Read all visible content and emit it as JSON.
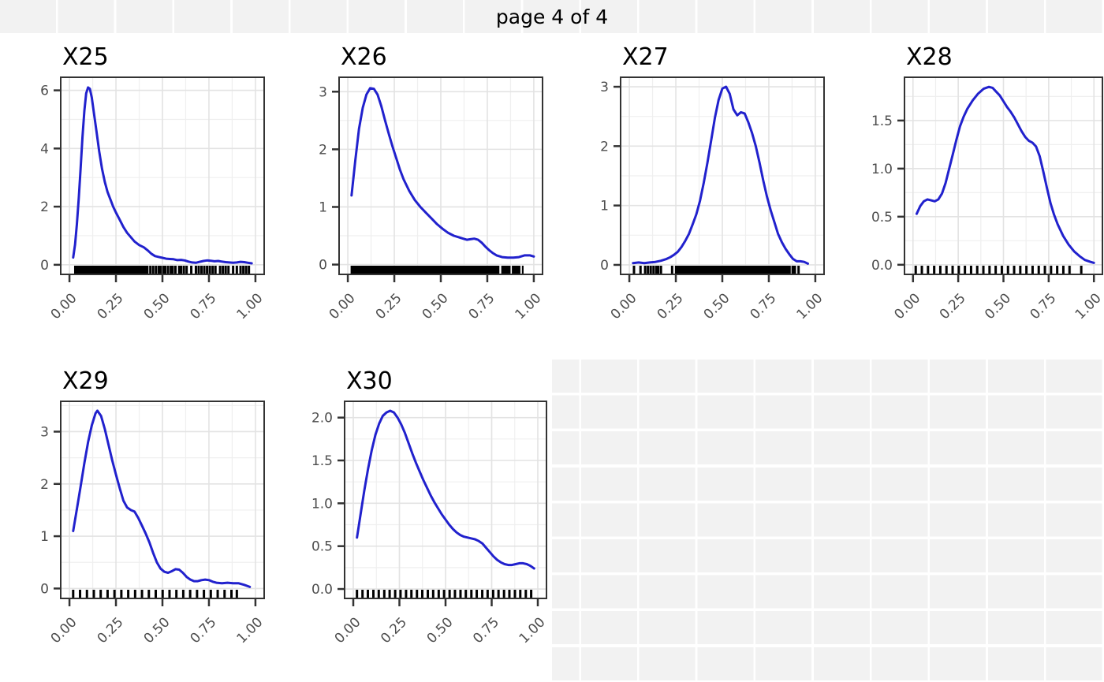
{
  "page": {
    "title": "page 4 of 4"
  },
  "colors": {
    "line": "#2121cd",
    "panel_background": "#ffffff",
    "grid_major": "#e3e3e3",
    "grid_minor": "#efefef",
    "panel_border": "#333333",
    "axis_tick": "#333333",
    "tick_label": "#4d4d4d",
    "title": "#000000",
    "rug": "#000000",
    "checker_cell": "#f2f2f2",
    "checker_line": "#ffffff"
  },
  "chart_data": [
    {
      "id": "X25",
      "title": "X25",
      "type": "line",
      "xlabel": "",
      "ylabel": "",
      "grid": true,
      "legend": "none",
      "xlim": [
        -0.047,
        1.047
      ],
      "ylim": [
        -0.33,
        6.45
      ],
      "x_ticks": [
        {
          "v": 0,
          "label": "0.00"
        },
        {
          "v": 0.25,
          "label": "0.25"
        },
        {
          "v": 0.5,
          "label": "0.50"
        },
        {
          "v": 0.75,
          "label": "0.75"
        },
        {
          "v": 1,
          "label": "1.00"
        }
      ],
      "y_ticks": [
        {
          "v": 0,
          "label": "0"
        },
        {
          "v": 2,
          "label": "2"
        },
        {
          "v": 4,
          "label": "4"
        },
        {
          "v": 6,
          "label": "6"
        }
      ],
      "curve": {
        "x": [
          0.02,
          0.03,
          0.04,
          0.05,
          0.06,
          0.07,
          0.08,
          0.09,
          0.1,
          0.11,
          0.12,
          0.13,
          0.145,
          0.16,
          0.175,
          0.19,
          0.205,
          0.22,
          0.235,
          0.25,
          0.27,
          0.29,
          0.31,
          0.33,
          0.35,
          0.375,
          0.4,
          0.42,
          0.44,
          0.46,
          0.48,
          0.5,
          0.52,
          0.54,
          0.56,
          0.58,
          0.6,
          0.62,
          0.64,
          0.66,
          0.68,
          0.7,
          0.72,
          0.74,
          0.76,
          0.78,
          0.8,
          0.82,
          0.84,
          0.86,
          0.88,
          0.9,
          0.92,
          0.94,
          0.96,
          0.98
        ],
        "y": [
          0.25,
          0.7,
          1.4,
          2.3,
          3.3,
          4.4,
          5.3,
          5.9,
          6.1,
          6.05,
          5.75,
          5.3,
          4.6,
          3.9,
          3.3,
          2.85,
          2.5,
          2.25,
          2.0,
          1.8,
          1.55,
          1.3,
          1.1,
          0.95,
          0.8,
          0.68,
          0.6,
          0.5,
          0.38,
          0.3,
          0.27,
          0.24,
          0.21,
          0.2,
          0.19,
          0.16,
          0.17,
          0.15,
          0.11,
          0.08,
          0.07,
          0.1,
          0.13,
          0.15,
          0.14,
          0.12,
          0.13,
          0.11,
          0.09,
          0.08,
          0.07,
          0.08,
          0.1,
          0.09,
          0.07,
          0.05
        ]
      },
      "rug": {
        "bands": [
          [
            0.025,
            0.425
          ]
        ],
        "ticks": [
          0.435,
          0.45,
          0.465,
          0.48,
          0.49,
          0.505,
          0.515,
          0.53,
          0.545,
          0.555,
          0.57,
          0.59,
          0.6,
          0.615,
          0.63,
          0.655,
          0.68,
          0.695,
          0.71,
          0.725,
          0.74,
          0.755,
          0.77,
          0.785,
          0.81,
          0.825,
          0.84,
          0.855,
          0.88,
          0.9,
          0.92,
          0.935,
          0.95,
          0.965
        ]
      }
    },
    {
      "id": "X26",
      "title": "X26",
      "type": "line",
      "xlabel": "",
      "ylabel": "",
      "grid": true,
      "legend": "none",
      "xlim": [
        -0.047,
        1.047
      ],
      "ylim": [
        -0.17,
        3.25
      ],
      "x_ticks": [
        {
          "v": 0,
          "label": "0.00"
        },
        {
          "v": 0.25,
          "label": "0.25"
        },
        {
          "v": 0.5,
          "label": "0.50"
        },
        {
          "v": 0.75,
          "label": "0.75"
        },
        {
          "v": 1,
          "label": "1.00"
        }
      ],
      "y_ticks": [
        {
          "v": 0,
          "label": "0"
        },
        {
          "v": 1,
          "label": "1"
        },
        {
          "v": 2,
          "label": "2"
        },
        {
          "v": 3,
          "label": "3"
        }
      ],
      "curve": {
        "x": [
          0.02,
          0.04,
          0.06,
          0.08,
          0.1,
          0.12,
          0.14,
          0.16,
          0.18,
          0.2,
          0.22,
          0.24,
          0.26,
          0.28,
          0.3,
          0.33,
          0.36,
          0.39,
          0.42,
          0.45,
          0.48,
          0.51,
          0.54,
          0.57,
          0.6,
          0.62,
          0.64,
          0.66,
          0.68,
          0.7,
          0.72,
          0.74,
          0.76,
          0.78,
          0.8,
          0.83,
          0.86,
          0.89,
          0.92,
          0.95,
          0.98,
          1.0
        ],
        "y": [
          1.2,
          1.8,
          2.35,
          2.72,
          2.95,
          3.06,
          3.05,
          2.95,
          2.75,
          2.5,
          2.27,
          2.05,
          1.85,
          1.65,
          1.48,
          1.28,
          1.12,
          1.0,
          0.9,
          0.8,
          0.7,
          0.62,
          0.55,
          0.5,
          0.47,
          0.45,
          0.43,
          0.44,
          0.45,
          0.43,
          0.38,
          0.31,
          0.25,
          0.2,
          0.16,
          0.13,
          0.12,
          0.12,
          0.13,
          0.16,
          0.16,
          0.14
        ]
      },
      "rug": {
        "bands": [
          [
            0.015,
            0.815
          ],
          [
            0.825,
            0.875
          ],
          [
            0.882,
            0.928
          ],
          [
            0.936,
            0.945
          ]
        ],
        "ticks": []
      }
    },
    {
      "id": "X27",
      "title": "X27",
      "type": "line",
      "xlabel": "",
      "ylabel": "",
      "grid": true,
      "legend": "none",
      "xlim": [
        -0.047,
        1.047
      ],
      "ylim": [
        -0.16,
        3.16
      ],
      "x_ticks": [
        {
          "v": 0,
          "label": "0.00"
        },
        {
          "v": 0.25,
          "label": "0.25"
        },
        {
          "v": 0.5,
          "label": "0.50"
        },
        {
          "v": 0.75,
          "label": "0.75"
        },
        {
          "v": 1,
          "label": "1.00"
        }
      ],
      "y_ticks": [
        {
          "v": 0,
          "label": "0"
        },
        {
          "v": 1,
          "label": "1"
        },
        {
          "v": 2,
          "label": "2"
        },
        {
          "v": 3,
          "label": "3"
        }
      ],
      "curve": {
        "x": [
          0.02,
          0.05,
          0.08,
          0.11,
          0.14,
          0.17,
          0.2,
          0.22,
          0.24,
          0.26,
          0.28,
          0.3,
          0.32,
          0.34,
          0.36,
          0.38,
          0.4,
          0.42,
          0.44,
          0.46,
          0.48,
          0.5,
          0.52,
          0.54,
          0.56,
          0.58,
          0.6,
          0.62,
          0.64,
          0.66,
          0.68,
          0.7,
          0.72,
          0.74,
          0.76,
          0.78,
          0.8,
          0.82,
          0.84,
          0.86,
          0.88,
          0.9,
          0.92,
          0.94,
          0.96
        ],
        "y": [
          0.03,
          0.04,
          0.03,
          0.04,
          0.05,
          0.07,
          0.1,
          0.13,
          0.17,
          0.22,
          0.3,
          0.4,
          0.52,
          0.68,
          0.85,
          1.08,
          1.38,
          1.72,
          2.1,
          2.48,
          2.78,
          2.97,
          3.0,
          2.88,
          2.62,
          2.52,
          2.57,
          2.55,
          2.4,
          2.22,
          2.0,
          1.72,
          1.42,
          1.15,
          0.92,
          0.72,
          0.52,
          0.38,
          0.27,
          0.18,
          0.1,
          0.06,
          0.06,
          0.05,
          0.02
        ]
      },
      "rug": {
        "bands": [
          [
            0.245,
            0.868
          ]
        ],
        "ticks": [
          0.025,
          0.06,
          0.085,
          0.1,
          0.115,
          0.13,
          0.145,
          0.155,
          0.17,
          0.23,
          0.878,
          0.89,
          0.91
        ]
      }
    },
    {
      "id": "X28",
      "title": "X28",
      "type": "line",
      "xlabel": "",
      "ylabel": "",
      "grid": true,
      "legend": "none",
      "xlim": [
        -0.047,
        1.047
      ],
      "ylim": [
        -0.1,
        1.95
      ],
      "x_ticks": [
        {
          "v": 0,
          "label": "0.00"
        },
        {
          "v": 0.25,
          "label": "0.25"
        },
        {
          "v": 0.5,
          "label": "0.50"
        },
        {
          "v": 0.75,
          "label": "0.75"
        },
        {
          "v": 1,
          "label": "1.00"
        }
      ],
      "y_ticks": [
        {
          "v": 0,
          "label": "0.0"
        },
        {
          "v": 0.5,
          "label": "0.5"
        },
        {
          "v": 1,
          "label": "1.0"
        },
        {
          "v": 1.5,
          "label": "1.5"
        }
      ],
      "curve": {
        "x": [
          0.02,
          0.04,
          0.06,
          0.08,
          0.1,
          0.12,
          0.14,
          0.16,
          0.18,
          0.2,
          0.22,
          0.24,
          0.26,
          0.28,
          0.3,
          0.33,
          0.36,
          0.39,
          0.42,
          0.44,
          0.46,
          0.48,
          0.5,
          0.52,
          0.54,
          0.56,
          0.58,
          0.6,
          0.62,
          0.64,
          0.66,
          0.68,
          0.7,
          0.72,
          0.74,
          0.76,
          0.78,
          0.8,
          0.83,
          0.86,
          0.89,
          0.92,
          0.95,
          0.98,
          1.0
        ],
        "y": [
          0.53,
          0.61,
          0.66,
          0.68,
          0.67,
          0.66,
          0.68,
          0.74,
          0.85,
          1.0,
          1.15,
          1.3,
          1.44,
          1.54,
          1.62,
          1.71,
          1.78,
          1.83,
          1.85,
          1.84,
          1.8,
          1.76,
          1.7,
          1.64,
          1.59,
          1.53,
          1.46,
          1.39,
          1.33,
          1.29,
          1.27,
          1.23,
          1.13,
          0.97,
          0.8,
          0.64,
          0.52,
          0.42,
          0.3,
          0.21,
          0.14,
          0.09,
          0.05,
          0.03,
          0.02
        ]
      },
      "rug": {
        "bands": [],
        "ticks": [
          0.015,
          0.049,
          0.083,
          0.117,
          0.151,
          0.185,
          0.219,
          0.253,
          0.287,
          0.321,
          0.355,
          0.389,
          0.423,
          0.457,
          0.491,
          0.525,
          0.559,
          0.593,
          0.627,
          0.661,
          0.695,
          0.729,
          0.763,
          0.797,
          0.831,
          0.865,
          0.93
        ]
      }
    },
    {
      "id": "X29",
      "title": "X29",
      "type": "line",
      "xlabel": "",
      "ylabel": "",
      "grid": true,
      "legend": "none",
      "xlim": [
        -0.047,
        1.047
      ],
      "ylim": [
        -0.19,
        3.58
      ],
      "x_ticks": [
        {
          "v": 0,
          "label": "0.00"
        },
        {
          "v": 0.25,
          "label": "0.25"
        },
        {
          "v": 0.5,
          "label": "0.50"
        },
        {
          "v": 0.75,
          "label": "0.75"
        },
        {
          "v": 1,
          "label": "1.00"
        }
      ],
      "y_ticks": [
        {
          "v": 0,
          "label": "0"
        },
        {
          "v": 1,
          "label": "1"
        },
        {
          "v": 2,
          "label": "2"
        },
        {
          "v": 3,
          "label": "3"
        }
      ],
      "curve": {
        "x": [
          0.02,
          0.04,
          0.06,
          0.08,
          0.1,
          0.12,
          0.14,
          0.15,
          0.17,
          0.19,
          0.21,
          0.23,
          0.25,
          0.27,
          0.29,
          0.31,
          0.33,
          0.35,
          0.37,
          0.39,
          0.41,
          0.43,
          0.45,
          0.47,
          0.49,
          0.51,
          0.53,
          0.55,
          0.57,
          0.59,
          0.61,
          0.63,
          0.65,
          0.67,
          0.69,
          0.71,
          0.73,
          0.75,
          0.77,
          0.79,
          0.82,
          0.85,
          0.88,
          0.91,
          0.94,
          0.97
        ],
        "y": [
          1.1,
          1.52,
          1.95,
          2.4,
          2.8,
          3.12,
          3.35,
          3.4,
          3.3,
          3.05,
          2.75,
          2.45,
          2.18,
          1.92,
          1.68,
          1.55,
          1.5,
          1.47,
          1.35,
          1.2,
          1.05,
          0.88,
          0.68,
          0.5,
          0.38,
          0.32,
          0.3,
          0.33,
          0.37,
          0.36,
          0.3,
          0.22,
          0.17,
          0.14,
          0.14,
          0.16,
          0.17,
          0.16,
          0.13,
          0.11,
          0.1,
          0.11,
          0.1,
          0.1,
          0.07,
          0.03
        ]
      },
      "rug": {
        "bands": [],
        "ticks": [
          0.02,
          0.057,
          0.094,
          0.131,
          0.168,
          0.205,
          0.242,
          0.279,
          0.316,
          0.353,
          0.39,
          0.427,
          0.464,
          0.501,
          0.538,
          0.575,
          0.612,
          0.649,
          0.686,
          0.723,
          0.76,
          0.797,
          0.834,
          0.871,
          0.9
        ]
      }
    },
    {
      "id": "X30",
      "title": "X30",
      "type": "line",
      "xlabel": "",
      "ylabel": "",
      "grid": true,
      "legend": "none",
      "xlim": [
        -0.047,
        1.047
      ],
      "ylim": [
        -0.11,
        2.19
      ],
      "x_ticks": [
        {
          "v": 0,
          "label": "0.00"
        },
        {
          "v": 0.25,
          "label": "0.25"
        },
        {
          "v": 0.5,
          "label": "0.50"
        },
        {
          "v": 0.75,
          "label": "0.75"
        },
        {
          "v": 1,
          "label": "1.00"
        }
      ],
      "y_ticks": [
        {
          "v": 0,
          "label": "0.0"
        },
        {
          "v": 0.5,
          "label": "0.5"
        },
        {
          "v": 1,
          "label": "1.0"
        },
        {
          "v": 1.5,
          "label": "1.5"
        },
        {
          "v": 2,
          "label": "2.0"
        }
      ],
      "curve": {
        "x": [
          0.02,
          0.04,
          0.06,
          0.08,
          0.1,
          0.12,
          0.14,
          0.16,
          0.18,
          0.2,
          0.22,
          0.24,
          0.26,
          0.28,
          0.3,
          0.32,
          0.34,
          0.36,
          0.38,
          0.4,
          0.42,
          0.44,
          0.46,
          0.48,
          0.5,
          0.52,
          0.54,
          0.56,
          0.58,
          0.6,
          0.62,
          0.64,
          0.66,
          0.68,
          0.7,
          0.72,
          0.74,
          0.76,
          0.78,
          0.8,
          0.82,
          0.84,
          0.86,
          0.88,
          0.9,
          0.92,
          0.94,
          0.96,
          0.98
        ],
        "y": [
          0.6,
          0.88,
          1.15,
          1.4,
          1.62,
          1.8,
          1.93,
          2.02,
          2.06,
          2.08,
          2.06,
          2.0,
          1.92,
          1.82,
          1.7,
          1.58,
          1.47,
          1.37,
          1.27,
          1.18,
          1.09,
          1.01,
          0.94,
          0.87,
          0.81,
          0.75,
          0.7,
          0.66,
          0.63,
          0.61,
          0.6,
          0.59,
          0.58,
          0.56,
          0.53,
          0.48,
          0.43,
          0.38,
          0.34,
          0.31,
          0.29,
          0.28,
          0.28,
          0.29,
          0.3,
          0.3,
          0.29,
          0.27,
          0.24
        ]
      },
      "rug": {
        "bands": [],
        "ticks": [
          0.02,
          0.05,
          0.079,
          0.109,
          0.138,
          0.168,
          0.197,
          0.227,
          0.256,
          0.286,
          0.315,
          0.345,
          0.374,
          0.404,
          0.433,
          0.463,
          0.492,
          0.522,
          0.551,
          0.581,
          0.61,
          0.64,
          0.669,
          0.699,
          0.728,
          0.758,
          0.787,
          0.817,
          0.846,
          0.876,
          0.905,
          0.935,
          0.964
        ]
      }
    }
  ]
}
